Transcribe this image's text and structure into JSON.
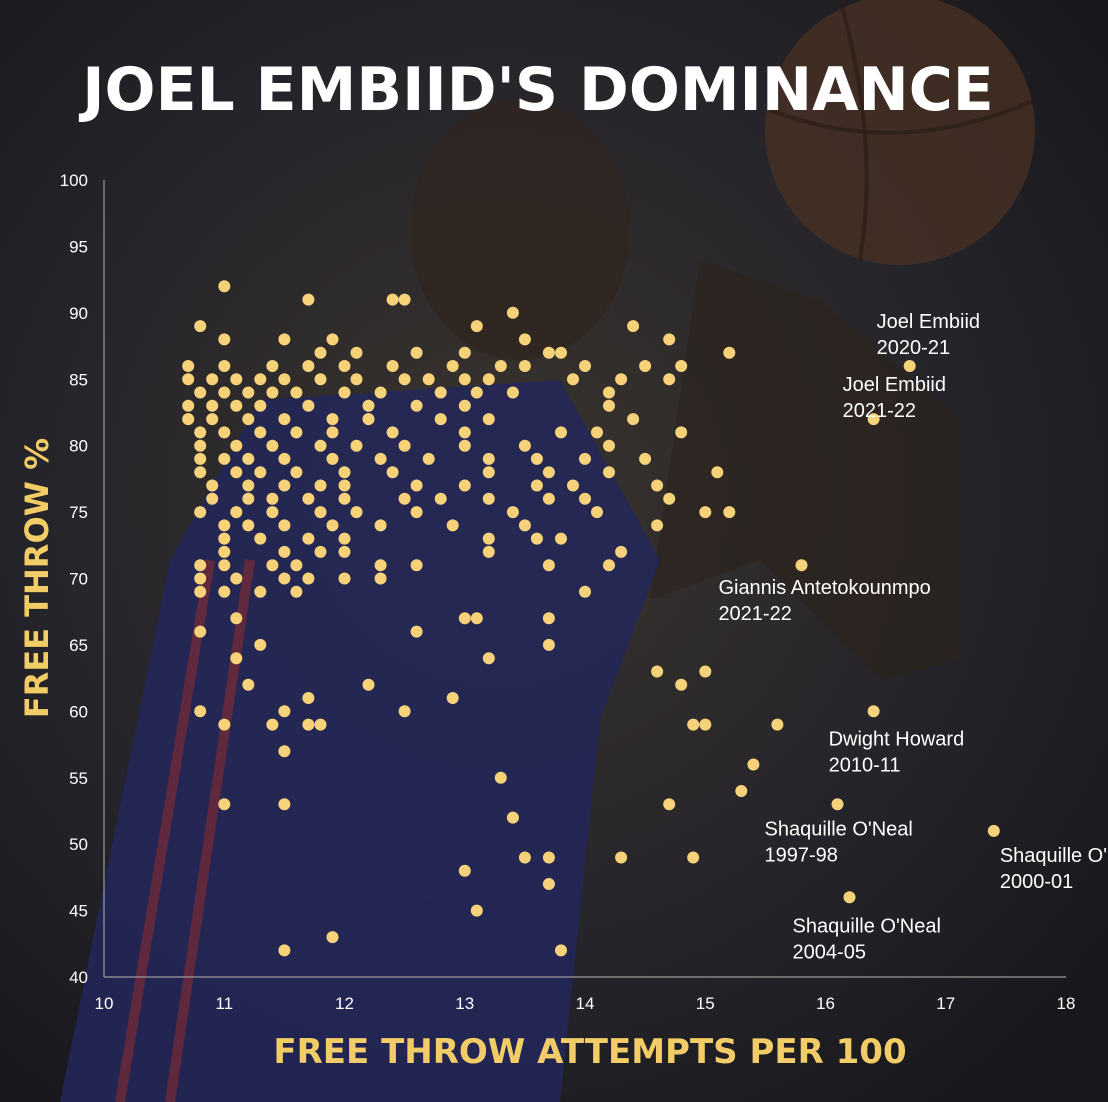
{
  "colors": {
    "background": "#1d1d20",
    "point": "#f6d27a",
    "title": "#ffffff",
    "axis_title": "#f2cc66",
    "tick": "#ffffff",
    "annotation": "#ffffff",
    "axis_line": "#9a9a9a"
  },
  "chart_data": {
    "type": "scatter",
    "title": "JOEL EMBIID'S DOMINANCE",
    "xlabel": "FREE THROW ATTEMPTS PER 100",
    "ylabel": "FREE THROW %",
    "xlim": [
      10,
      18
    ],
    "ylim": [
      40,
      100
    ],
    "xticks": [
      "10",
      "11",
      "12",
      "13",
      "14",
      "15",
      "16",
      "17",
      "18"
    ],
    "yticks": [
      "40",
      "45",
      "50",
      "55",
      "60",
      "65",
      "70",
      "75",
      "80",
      "85",
      "90",
      "95",
      "100"
    ],
    "grid": false,
    "legend": "none",
    "annotations": [
      {
        "name": "Joel Embiid",
        "season": "2020-21",
        "x": 16.7,
        "y": 86
      },
      {
        "name": "Joel Embiid",
        "season": "2021-22",
        "x": 16.4,
        "y": 82
      },
      {
        "name": "Giannis Antetokounmpo",
        "season": "2021-22",
        "x": 15.8,
        "y": 71
      },
      {
        "name": "Dwight Howard",
        "season": "2010-11",
        "x": 16.4,
        "y": 60
      },
      {
        "name": "Shaquille O'Neal",
        "season": "1997-98",
        "x": 16.1,
        "y": 53
      },
      {
        "name": "Shaquille O'Neal",
        "season": "2000-01",
        "x": 17.4,
        "y": 51
      },
      {
        "name": "Shaquille O'Neal",
        "season": "2004-05",
        "x": 16.2,
        "y": 46
      }
    ],
    "points": [
      [
        11.0,
        92
      ],
      [
        11.7,
        91
      ],
      [
        12.4,
        91
      ],
      [
        12.5,
        91
      ],
      [
        13.4,
        90
      ],
      [
        10.8,
        89
      ],
      [
        13.1,
        89
      ],
      [
        14.4,
        89
      ],
      [
        11.0,
        88
      ],
      [
        11.5,
        88
      ],
      [
        11.9,
        88
      ],
      [
        13.5,
        88
      ],
      [
        14.7,
        88
      ],
      [
        11.8,
        87
      ],
      [
        12.1,
        87
      ],
      [
        12.6,
        87
      ],
      [
        13.0,
        87
      ],
      [
        13.7,
        87
      ],
      [
        13.8,
        87
      ],
      [
        15.2,
        87
      ],
      [
        10.7,
        86
      ],
      [
        11.0,
        86
      ],
      [
        11.4,
        86
      ],
      [
        11.7,
        86
      ],
      [
        12.0,
        86
      ],
      [
        12.4,
        86
      ],
      [
        12.9,
        86
      ],
      [
        13.3,
        86
      ],
      [
        13.5,
        86
      ],
      [
        14.0,
        86
      ],
      [
        14.5,
        86
      ],
      [
        14.8,
        86
      ],
      [
        16.7,
        86
      ],
      [
        10.7,
        85
      ],
      [
        10.9,
        85
      ],
      [
        11.1,
        85
      ],
      [
        11.3,
        85
      ],
      [
        11.5,
        85
      ],
      [
        11.8,
        85
      ],
      [
        12.1,
        85
      ],
      [
        12.5,
        85
      ],
      [
        12.7,
        85
      ],
      [
        13.0,
        85
      ],
      [
        13.2,
        85
      ],
      [
        13.9,
        85
      ],
      [
        14.3,
        85
      ],
      [
        14.7,
        85
      ],
      [
        10.8,
        84
      ],
      [
        11.0,
        84
      ],
      [
        11.2,
        84
      ],
      [
        11.4,
        84
      ],
      [
        11.6,
        84
      ],
      [
        12.0,
        84
      ],
      [
        12.3,
        84
      ],
      [
        12.8,
        84
      ],
      [
        13.1,
        84
      ],
      [
        13.4,
        84
      ],
      [
        14.2,
        84
      ],
      [
        10.7,
        83
      ],
      [
        10.9,
        83
      ],
      [
        11.1,
        83
      ],
      [
        11.3,
        83
      ],
      [
        11.7,
        83
      ],
      [
        12.2,
        83
      ],
      [
        12.6,
        83
      ],
      [
        13.0,
        83
      ],
      [
        14.2,
        83
      ],
      [
        10.7,
        82
      ],
      [
        10.9,
        82
      ],
      [
        11.2,
        82
      ],
      [
        11.5,
        82
      ],
      [
        11.9,
        82
      ],
      [
        12.2,
        82
      ],
      [
        12.8,
        82
      ],
      [
        13.2,
        82
      ],
      [
        14.4,
        82
      ],
      [
        16.4,
        82
      ],
      [
        10.8,
        81
      ],
      [
        11.0,
        81
      ],
      [
        11.3,
        81
      ],
      [
        11.6,
        81
      ],
      [
        11.9,
        81
      ],
      [
        12.4,
        81
      ],
      [
        13.0,
        81
      ],
      [
        13.8,
        81
      ],
      [
        14.1,
        81
      ],
      [
        14.8,
        81
      ],
      [
        10.8,
        80
      ],
      [
        11.1,
        80
      ],
      [
        11.4,
        80
      ],
      [
        11.8,
        80
      ],
      [
        12.1,
        80
      ],
      [
        12.5,
        80
      ],
      [
        13.0,
        80
      ],
      [
        13.5,
        80
      ],
      [
        14.2,
        80
      ],
      [
        10.8,
        79
      ],
      [
        11.0,
        79
      ],
      [
        11.2,
        79
      ],
      [
        11.5,
        79
      ],
      [
        11.9,
        79
      ],
      [
        12.3,
        79
      ],
      [
        12.7,
        79
      ],
      [
        13.2,
        79
      ],
      [
        13.6,
        79
      ],
      [
        14.0,
        79
      ],
      [
        14.5,
        79
      ],
      [
        10.8,
        78
      ],
      [
        11.1,
        78
      ],
      [
        11.3,
        78
      ],
      [
        11.6,
        78
      ],
      [
        12.0,
        78
      ],
      [
        12.4,
        78
      ],
      [
        13.2,
        78
      ],
      [
        13.7,
        78
      ],
      [
        14.2,
        78
      ],
      [
        15.1,
        78
      ],
      [
        10.9,
        77
      ],
      [
        11.2,
        77
      ],
      [
        11.5,
        77
      ],
      [
        11.8,
        77
      ],
      [
        12.0,
        77
      ],
      [
        12.6,
        77
      ],
      [
        13.0,
        77
      ],
      [
        13.6,
        77
      ],
      [
        13.9,
        77
      ],
      [
        14.6,
        77
      ],
      [
        10.9,
        76
      ],
      [
        11.2,
        76
      ],
      [
        11.4,
        76
      ],
      [
        11.7,
        76
      ],
      [
        12.0,
        76
      ],
      [
        12.5,
        76
      ],
      [
        12.8,
        76
      ],
      [
        13.2,
        76
      ],
      [
        13.7,
        76
      ],
      [
        14.0,
        76
      ],
      [
        14.7,
        76
      ],
      [
        10.8,
        75
      ],
      [
        11.1,
        75
      ],
      [
        11.4,
        75
      ],
      [
        11.8,
        75
      ],
      [
        12.1,
        75
      ],
      [
        12.6,
        75
      ],
      [
        13.4,
        75
      ],
      [
        14.1,
        75
      ],
      [
        15.0,
        75
      ],
      [
        15.2,
        75
      ],
      [
        11.0,
        74
      ],
      [
        11.2,
        74
      ],
      [
        11.5,
        74
      ],
      [
        11.9,
        74
      ],
      [
        12.3,
        74
      ],
      [
        12.9,
        74
      ],
      [
        13.5,
        74
      ],
      [
        14.6,
        74
      ],
      [
        11.0,
        73
      ],
      [
        11.3,
        73
      ],
      [
        11.7,
        73
      ],
      [
        12.0,
        73
      ],
      [
        13.2,
        73
      ],
      [
        13.6,
        73
      ],
      [
        13.8,
        73
      ],
      [
        11.0,
        72
      ],
      [
        11.5,
        72
      ],
      [
        11.8,
        72
      ],
      [
        12.0,
        72
      ],
      [
        13.2,
        72
      ],
      [
        14.3,
        72
      ],
      [
        10.8,
        71
      ],
      [
        11.0,
        71
      ],
      [
        11.4,
        71
      ],
      [
        11.6,
        71
      ],
      [
        12.3,
        71
      ],
      [
        12.6,
        71
      ],
      [
        13.7,
        71
      ],
      [
        14.2,
        71
      ],
      [
        15.8,
        71
      ],
      [
        10.8,
        70
      ],
      [
        11.1,
        70
      ],
      [
        11.5,
        70
      ],
      [
        11.7,
        70
      ],
      [
        12.0,
        70
      ],
      [
        12.3,
        70
      ],
      [
        10.8,
        69
      ],
      [
        11.0,
        69
      ],
      [
        11.3,
        69
      ],
      [
        11.6,
        69
      ],
      [
        14.0,
        69
      ],
      [
        13.0,
        67
      ],
      [
        13.1,
        67
      ],
      [
        13.7,
        67
      ],
      [
        10.8,
        66
      ],
      [
        12.6,
        66
      ],
      [
        11.1,
        67
      ],
      [
        11.3,
        65
      ],
      [
        13.7,
        65
      ],
      [
        13.2,
        64
      ],
      [
        11.1,
        64
      ],
      [
        14.6,
        63
      ],
      [
        15.0,
        63
      ],
      [
        11.2,
        62
      ],
      [
        12.2,
        62
      ],
      [
        14.8,
        62
      ],
      [
        11.7,
        61
      ],
      [
        12.9,
        61
      ],
      [
        10.8,
        60
      ],
      [
        11.5,
        60
      ],
      [
        12.5,
        60
      ],
      [
        16.4,
        60
      ],
      [
        11.0,
        59
      ],
      [
        11.4,
        59
      ],
      [
        11.7,
        59
      ],
      [
        11.8,
        59
      ],
      [
        14.9,
        59
      ],
      [
        15.0,
        59
      ],
      [
        15.6,
        59
      ],
      [
        11.5,
        57
      ],
      [
        15.4,
        56
      ],
      [
        13.3,
        55
      ],
      [
        15.3,
        54
      ],
      [
        11.0,
        53
      ],
      [
        11.5,
        53
      ],
      [
        14.7,
        53
      ],
      [
        16.1,
        53
      ],
      [
        13.4,
        52
      ],
      [
        17.4,
        51
      ],
      [
        13.5,
        49
      ],
      [
        13.7,
        49
      ],
      [
        14.3,
        49
      ],
      [
        14.9,
        49
      ],
      [
        13.0,
        48
      ],
      [
        13.7,
        47
      ],
      [
        16.2,
        46
      ],
      [
        13.1,
        45
      ],
      [
        11.9,
        43
      ],
      [
        11.5,
        42
      ],
      [
        13.8,
        42
      ]
    ]
  }
}
